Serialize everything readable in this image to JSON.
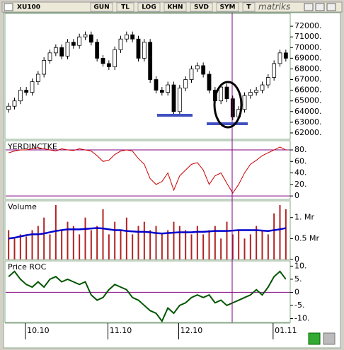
{
  "toolbar": {
    "symbol": "XU100",
    "buttons": [
      "GUN",
      "TL",
      "LOG",
      "KHN",
      "SVD",
      "SYM",
      "T"
    ],
    "logo": "matriks"
  },
  "chart_data": [
    {
      "type": "candlestick",
      "categories": [
        null,
        null,
        null,
        null,
        null,
        "10.10",
        null,
        null,
        null,
        null,
        null,
        null,
        null,
        null,
        null,
        null,
        null,
        null,
        null,
        "11.10",
        null,
        null,
        null,
        null,
        null,
        null,
        null,
        null,
        null,
        null,
        null,
        "12.10",
        null,
        null,
        null,
        null,
        null,
        null,
        null,
        null,
        null,
        null,
        null,
        null,
        null,
        null,
        null,
        "01.11"
      ],
      "open": [
        64200,
        64500,
        65000,
        66000,
        65800,
        66800,
        67500,
        68800,
        69500,
        70000,
        69200,
        70500,
        70200,
        71000,
        71200,
        70500,
        69000,
        68500,
        68200,
        69800,
        70800,
        71200,
        70800,
        69000,
        70500,
        67000,
        66000,
        65800,
        66500,
        64000,
        66200,
        67000,
        68000,
        68300,
        67500,
        66000,
        65000,
        66300,
        65200,
        63500,
        64200,
        65500,
        65800,
        66000,
        66500,
        67200,
        68500,
        69500
      ],
      "high": [
        64800,
        65300,
        66300,
        66300,
        67100,
        67800,
        69100,
        69800,
        70300,
        70300,
        70800,
        70800,
        71300,
        71500,
        71500,
        70800,
        69300,
        68800,
        70100,
        71100,
        71500,
        71500,
        71100,
        70800,
        70800,
        67300,
        66300,
        66800,
        66800,
        66500,
        67300,
        68300,
        68600,
        68600,
        67800,
        66300,
        66600,
        66600,
        65500,
        64500,
        65800,
        66100,
        66300,
        66800,
        67500,
        68800,
        69800,
        69800
      ],
      "low": [
        63900,
        64200,
        64700,
        65500,
        65500,
        66500,
        67200,
        68500,
        69200,
        68900,
        68900,
        69900,
        69900,
        70700,
        70200,
        68700,
        68200,
        67900,
        67900,
        69500,
        70500,
        70500,
        68700,
        68700,
        66700,
        65700,
        65500,
        65500,
        63700,
        63700,
        65900,
        66700,
        67700,
        67200,
        65700,
        64700,
        64700,
        64900,
        63200,
        63200,
        63900,
        65200,
        65500,
        65700,
        66200,
        66900,
        68200,
        68700
      ],
      "close": [
        64500,
        65000,
        66000,
        65800,
        66800,
        67500,
        68800,
        69500,
        70000,
        69200,
        70500,
        70200,
        71000,
        71200,
        70500,
        69000,
        68500,
        68200,
        69800,
        70800,
        71200,
        70800,
        69000,
        70500,
        67000,
        66000,
        65800,
        66500,
        64000,
        66200,
        67000,
        68000,
        68300,
        67500,
        66000,
        65000,
        66300,
        65200,
        63500,
        64200,
        65500,
        65800,
        66000,
        66500,
        67200,
        68500,
        69500,
        69000
      ],
      "up_color": "#ffffff",
      "down_color": "#000000",
      "ylim": [
        61400,
        73200
      ],
      "yticks": [
        {
          "value": 62000,
          "label": "62000."
        },
        {
          "value": 63000,
          "label": "63000."
        },
        {
          "value": 64000,
          "label": "64000."
        },
        {
          "value": 65000,
          "label": "65000."
        },
        {
          "value": 66000,
          "label": "66000."
        },
        {
          "value": 67000,
          "label": "67000."
        },
        {
          "value": 68000,
          "label": "68000."
        },
        {
          "value": 69000,
          "label": "69000."
        },
        {
          "value": 70000,
          "label": "70000."
        },
        {
          "value": 71000,
          "label": "71000."
        },
        {
          "value": 72000,
          "label": "72000."
        }
      ]
    },
    {
      "type": "line",
      "title": "YERDINCTKE",
      "series": [
        {
          "color": "#cc0000",
          "values": [
            75,
            78,
            80,
            80,
            82,
            84,
            82,
            80,
            78,
            82,
            80,
            79,
            82,
            80,
            78,
            70,
            60,
            62,
            72,
            78,
            80,
            78,
            65,
            55,
            30,
            20,
            25,
            40,
            10,
            35,
            45,
            55,
            58,
            45,
            20,
            35,
            40,
            22,
            5,
            20,
            40,
            55,
            62,
            70,
            75,
            80,
            85,
            80
          ]
        }
      ],
      "hlines": [
        80,
        0
      ],
      "hline_color": "#800080",
      "ylim": [
        -6,
        96
      ],
      "yticks": [
        0,
        {
          "value": 20,
          "label": "20."
        },
        {
          "value": 40,
          "label": "40."
        },
        {
          "value": 60,
          "label": "60."
        },
        {
          "value": 80,
          "label": "80."
        }
      ]
    },
    {
      "type": "bar",
      "title": "Volume",
      "series": [
        {
          "type": "bar",
          "color": "#b22222",
          "values": [
            0.7,
            0.5,
            0.6,
            0.55,
            0.7,
            0.8,
            1.0,
            0.6,
            1.3,
            0.7,
            0.9,
            0.8,
            0.6,
            1.0,
            0.7,
            0.8,
            1.2,
            0.6,
            0.9,
            0.7,
            1.0,
            0.6,
            0.8,
            0.9,
            0.7,
            0.8,
            0.6,
            0.7,
            0.9,
            0.8,
            0.7,
            0.6,
            0.8,
            0.6,
            0.7,
            0.8,
            0.5,
            0.9,
            0.6,
            0.7,
            0.5,
            0.6,
            0.8,
            0.7,
            0.6,
            1.1,
            1.3,
            1.2
          ]
        },
        {
          "type": "line",
          "color": "#0000cc",
          "values": [
            0.5,
            0.52,
            0.55,
            0.58,
            0.6,
            0.6,
            0.62,
            0.65,
            0.68,
            0.7,
            0.72,
            0.72,
            0.72,
            0.73,
            0.74,
            0.75,
            0.74,
            0.72,
            0.7,
            0.7,
            0.68,
            0.67,
            0.66,
            0.66,
            0.65,
            0.63,
            0.62,
            0.63,
            0.64,
            0.65,
            0.65,
            0.65,
            0.66,
            0.66,
            0.67,
            0.68,
            0.68,
            0.68,
            0.69,
            0.7,
            0.7,
            0.7,
            0.7,
            0.69,
            0.68,
            0.7,
            0.72,
            0.75
          ]
        }
      ],
      "ylim": [
        0,
        1.4
      ],
      "yticks": [
        0,
        {
          "value": 0.5,
          "label": "0.5 Mr"
        },
        {
          "value": 1,
          "label": "1. Mr"
        }
      ]
    },
    {
      "type": "line",
      "title": "Price ROC",
      "series": [
        {
          "color": "#005500",
          "values": [
            6,
            8,
            5,
            3,
            2,
            4,
            2,
            5,
            6,
            4,
            5,
            4,
            3,
            4,
            -1,
            -3,
            -2,
            1,
            3,
            2,
            1,
            -2,
            -3,
            -5,
            -7,
            -8,
            -11,
            -6,
            -8,
            -5,
            -4,
            -2,
            -1,
            -2,
            -1,
            -4,
            -3,
            -5,
            -4,
            -3,
            -2,
            -1,
            1,
            -1,
            2,
            6,
            8,
            5
          ]
        }
      ],
      "hlines": [
        0
      ],
      "hline_color": "#800080",
      "ylim": [
        -11.5,
        12
      ],
      "yticks": [
        {
          "value": -10,
          "label": "-10."
        },
        {
          "value": -5,
          "label": "-5."
        },
        0,
        {
          "value": 5,
          "label": "5."
        },
        {
          "value": 10,
          "label": "10."
        }
      ]
    }
  ]
}
